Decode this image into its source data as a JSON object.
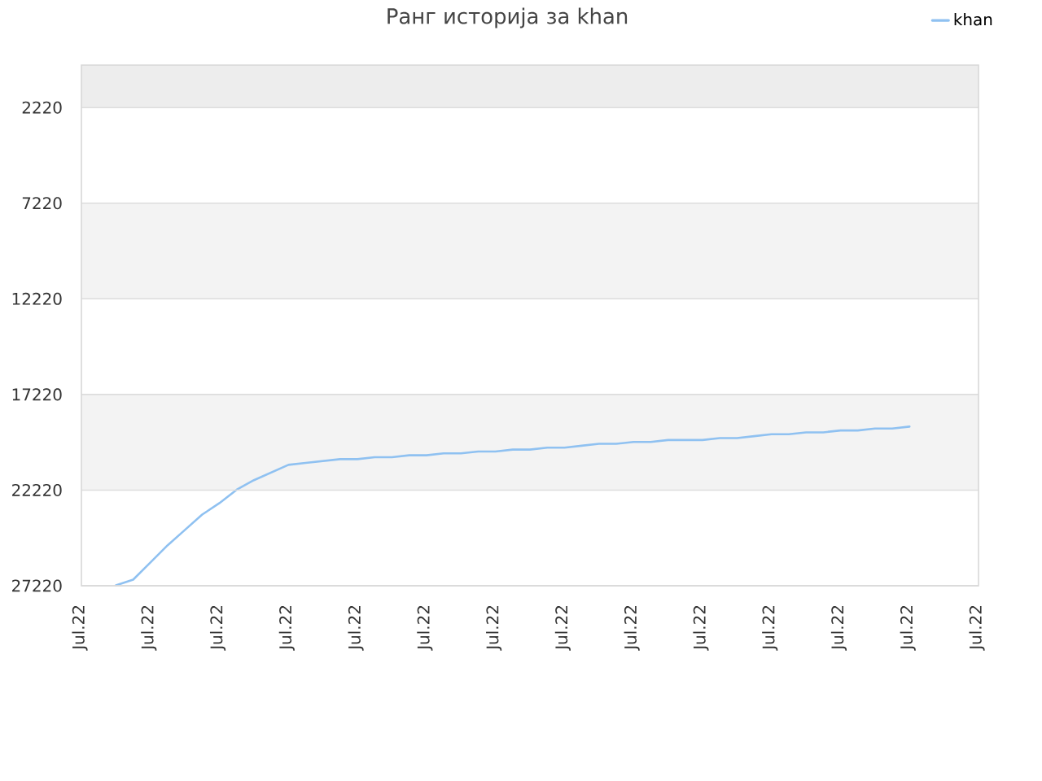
{
  "chart_data": {
    "type": "line",
    "title": "Ранг историја за khan",
    "categories": [
      "Jul.22",
      null,
      null,
      null,
      "Jul.22",
      null,
      null,
      null,
      "Jul.22",
      null,
      null,
      null,
      "Jul.22",
      null,
      null,
      null,
      "Jul.22",
      null,
      null,
      null,
      "Jul.22",
      null,
      null,
      null,
      "Jul.22",
      null,
      null,
      null,
      "Jul.22",
      null,
      null,
      null,
      "Jul.22",
      null,
      null,
      null,
      "Jul.22",
      null,
      null,
      null,
      "Jul.22",
      null,
      null,
      null,
      "Jul.22",
      null,
      null,
      null,
      "Jul.22",
      null,
      null,
      null,
      "Jul.22"
    ],
    "series": [
      {
        "name": "khan",
        "color": "#8fc1f1",
        "values": [
          null,
          null,
          27200,
          26900,
          26000,
          25100,
          24300,
          23500,
          22900,
          22200,
          21700,
          21300,
          20900,
          20800,
          20700,
          20600,
          20600,
          20500,
          20500,
          20400,
          20400,
          20300,
          20300,
          20200,
          20200,
          20100,
          20100,
          20000,
          20000,
          19900,
          19800,
          19800,
          19700,
          19700,
          19600,
          19600,
          19600,
          19500,
          19500,
          19400,
          19300,
          19300,
          19200,
          19200,
          19100,
          19100,
          19000,
          19000,
          18900,
          null,
          null,
          null,
          null
        ]
      }
    ],
    "ylim": [
      27220,
      0
    ],
    "yticks": [
      2220,
      7220,
      12220,
      17220,
      22220,
      27220
    ],
    "grid": "y",
    "legend": "top right",
    "marker": "none",
    "bands": [
      {
        "axis": "y",
        "from": 0,
        "to": 2220,
        "color": "#ededed"
      },
      {
        "axis": "y",
        "from": 7220,
        "to": 12220,
        "color": "#f3f3f3"
      },
      {
        "axis": "y",
        "from": 17220,
        "to": 22220,
        "color": "#f3f3f3"
      }
    ]
  }
}
